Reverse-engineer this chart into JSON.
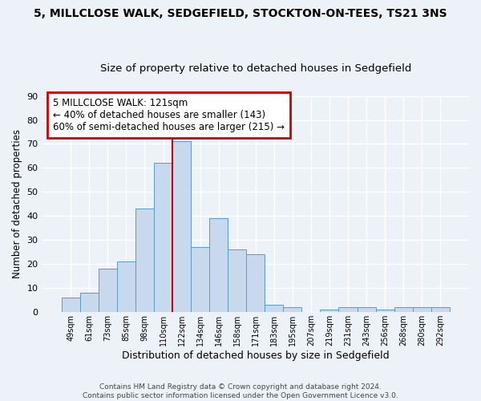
{
  "title_line1": "5, MILLCLOSE WALK, SEDGEFIELD, STOCKTON-ON-TEES, TS21 3NS",
  "title_line2": "Size of property relative to detached houses in Sedgefield",
  "xlabel": "Distribution of detached houses by size in Sedgefield",
  "ylabel": "Number of detached properties",
  "bar_labels": [
    "49sqm",
    "61sqm",
    "73sqm",
    "85sqm",
    "98sqm",
    "110sqm",
    "122sqm",
    "134sqm",
    "146sqm",
    "158sqm",
    "171sqm",
    "183sqm",
    "195sqm",
    "207sqm",
    "219sqm",
    "231sqm",
    "243sqm",
    "256sqm",
    "268sqm",
    "280sqm",
    "292sqm"
  ],
  "bar_heights": [
    6,
    8,
    18,
    21,
    43,
    62,
    71,
    27,
    39,
    26,
    24,
    3,
    2,
    0,
    1,
    2,
    2,
    1,
    2,
    2,
    2
  ],
  "bar_color": "#c9d9ed",
  "bar_edge_color": "#5b9ac7",
  "vline_color": "#cc0000",
  "ylim": [
    0,
    90
  ],
  "yticks": [
    0,
    10,
    20,
    30,
    40,
    50,
    60,
    70,
    80,
    90
  ],
  "annotation_title": "5 MILLCLOSE WALK: 121sqm",
  "annotation_line1": "← 40% of detached houses are smaller (143)",
  "annotation_line2": "60% of semi-detached houses are larger (215) →",
  "annotation_box_color": "#ffffff",
  "annotation_box_edge": "#cc0000",
  "footer_line1": "Contains HM Land Registry data © Crown copyright and database right 2024.",
  "footer_line2": "Contains public sector information licensed under the Open Government Licence v3.0.",
  "bg_color": "#edf2f9",
  "grid_color": "#ffffff",
  "title_fontsize": 10,
  "subtitle_fontsize": 9.5
}
